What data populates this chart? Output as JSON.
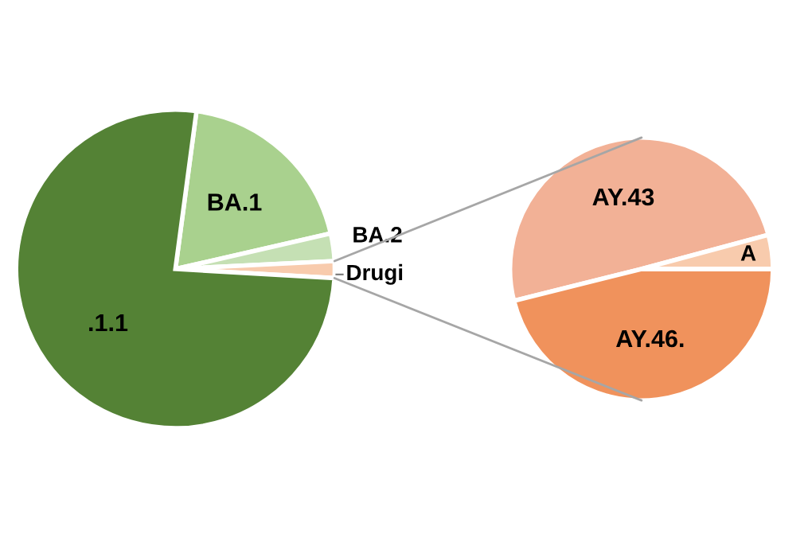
{
  "chart_data": [
    {
      "type": "pie",
      "categories": [
        "BA.1",
        "BA.2",
        "Drugi",
        ".1.1"
      ],
      "values": [
        19.3,
        2.8,
        1.7,
        76.2
      ],
      "colors": [
        "#a9d18e",
        "#c5e0b4",
        "#f8cbad",
        "#548235"
      ]
    },
    {
      "type": "pie",
      "categories": [
        "AY.43",
        "A",
        "AY.46."
      ],
      "values": [
        49.7,
        4.2,
        46.1
      ],
      "colors": [
        "#f2b196",
        "#f8cbad",
        "#f0925c"
      ]
    }
  ]
}
